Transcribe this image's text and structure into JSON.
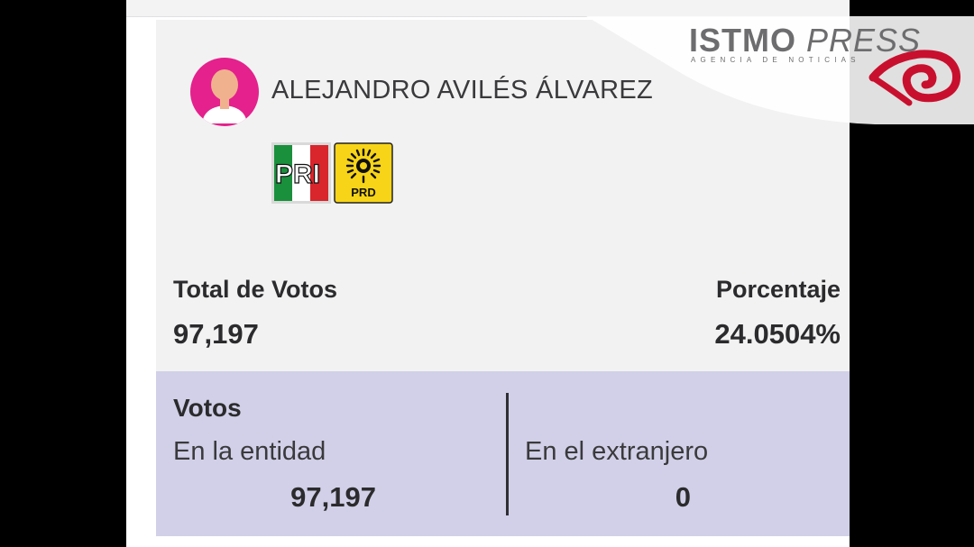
{
  "candidate": {
    "name": "ALEJANDRO AVILÉS ÁLVAREZ",
    "parties": [
      "PRI",
      "PRD"
    ]
  },
  "stats": {
    "total_label": "Total de Votos",
    "total_value": "97,197",
    "percent_label": "Porcentaje",
    "percent_value": "24.0504%"
  },
  "votes": {
    "title": "Votos",
    "domestic_label": "En la entidad",
    "domestic_value": "97,197",
    "abroad_label": "En el extranjero",
    "abroad_value": "0"
  },
  "watermark": {
    "brand_strong": "ISTMO",
    "brand_light": "PRESS",
    "tagline": "AGENCIA DE NOTICIAS"
  },
  "colors": {
    "avatar_pink": "#e4218c",
    "votes_panel": "#d1d0e8",
    "pri_green": "#1a8f3c",
    "pri_red": "#d8262c",
    "prd_yellow": "#f7d417",
    "watermark_red": "#c8102e"
  }
}
